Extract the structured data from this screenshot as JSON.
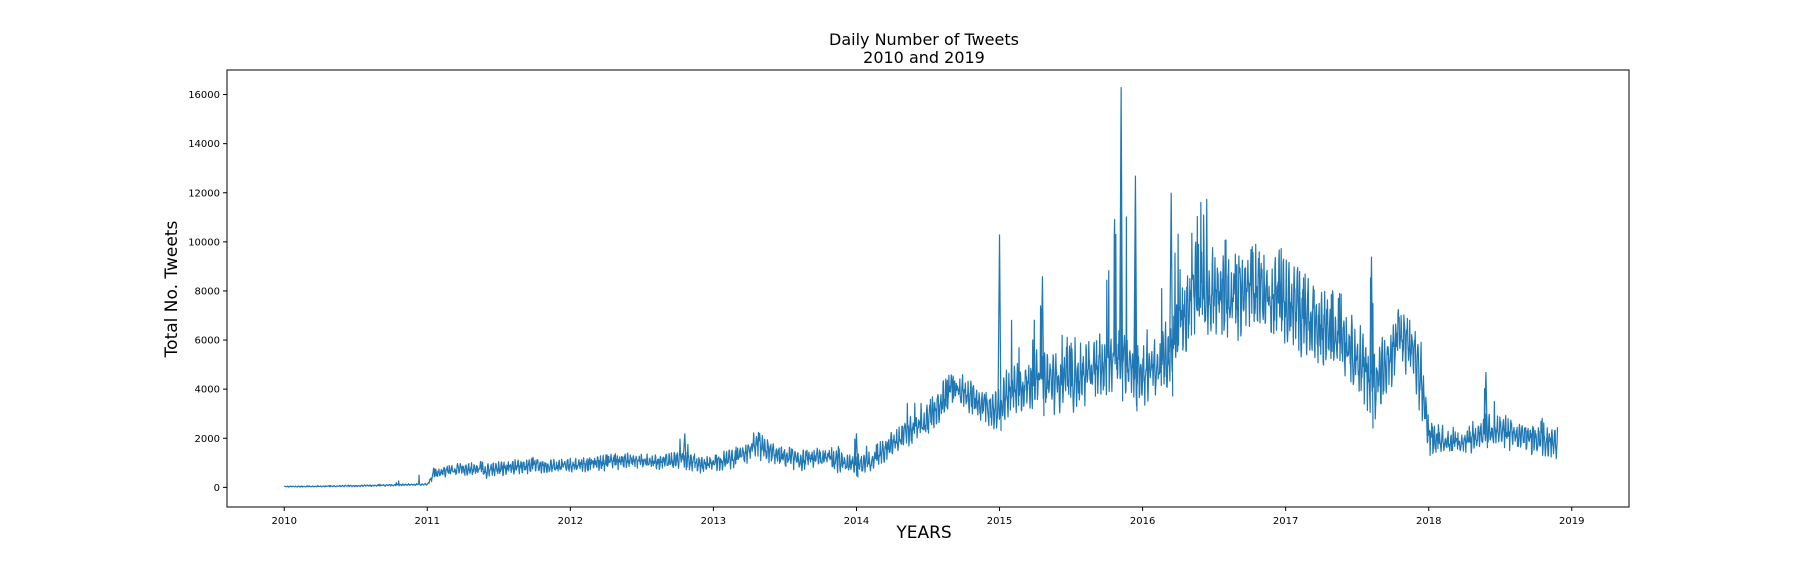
{
  "chart_data": {
    "type": "line",
    "title": "Daily Number of Tweets",
    "subtitle": "2010 and 2019",
    "xlabel": "YEARS",
    "ylabel": "Total No. Tweets",
    "xlim": [
      2009.6,
      2019.4
    ],
    "ylim": [
      -800,
      17000
    ],
    "x_ticks": [
      2010,
      2011,
      2012,
      2013,
      2014,
      2015,
      2016,
      2017,
      2018,
      2019
    ],
    "x_tick_labels": [
      "2010",
      "2011",
      "2012",
      "2013",
      "2014",
      "2015",
      "2016",
      "2017",
      "2018",
      "2019"
    ],
    "y_ticks": [
      0,
      2000,
      4000,
      6000,
      8000,
      10000,
      12000,
      14000,
      16000
    ],
    "y_tick_labels": [
      "0",
      "2000",
      "4000",
      "6000",
      "8000",
      "10000",
      "12000",
      "14000",
      "16000"
    ],
    "grid": false,
    "series_color": "#1f77b4",
    "sampling": "approximate weekly trend of a daily series; max and min mark the spike peaks and troughs",
    "series": [
      {
        "x": [
          2010.0,
          2010.25,
          2010.5,
          2010.75,
          2011.0,
          2011.05,
          2011.15,
          2011.3,
          2011.45,
          2011.6,
          2011.75,
          2011.9,
          2012.0,
          2012.2,
          2012.4,
          2012.6,
          2012.8,
          2012.9,
          2013.0,
          2013.15,
          2013.3,
          2013.45,
          2013.6,
          2013.8,
          2014.0,
          2014.1,
          2014.2,
          2014.35,
          2014.5,
          2014.65,
          2014.75,
          2014.85,
          2014.95,
          2015.0,
          2015.1,
          2015.2,
          2015.3,
          2015.45,
          2015.6,
          2015.75,
          2015.85,
          2015.95,
          2016.0,
          2016.1,
          2016.2,
          2016.3,
          2016.4,
          2016.5,
          2016.6,
          2016.7,
          2016.8,
          2016.9,
          2017.0,
          2017.1,
          2017.2,
          2017.3,
          2017.4,
          2017.5,
          2017.6,
          2017.7,
          2017.8,
          2017.9,
          2017.95,
          2018.0,
          2018.1,
          2018.2,
          2018.3,
          2018.4,
          2018.5,
          2018.6,
          2018.7,
          2018.8,
          2018.9
        ],
        "mean": [
          30,
          40,
          60,
          90,
          130,
          550,
          700,
          750,
          700,
          850,
          900,
          850,
          900,
          1000,
          1100,
          1050,
          1150,
          900,
          1000,
          1200,
          1700,
          1300,
          1100,
          1200,
          900,
          1100,
          1500,
          2200,
          2700,
          3900,
          3900,
          3500,
          3100,
          3400,
          4000,
          4200,
          4400,
          4300,
          4600,
          5000,
          5200,
          4700,
          4600,
          4800,
          5500,
          7200,
          8200,
          7800,
          7700,
          7900,
          8100,
          7700,
          7600,
          7200,
          6800,
          6400,
          6200,
          5300,
          4300,
          4800,
          6200,
          5500,
          4200,
          2000,
          1900,
          1800,
          1900,
          2400,
          2300,
          2100,
          2000,
          2000,
          1800
        ],
        "min": [
          0,
          10,
          20,
          40,
          70,
          300,
          400,
          400,
          300,
          500,
          500,
          500,
          550,
          600,
          700,
          650,
          700,
          500,
          550,
          700,
          1000,
          700,
          600,
          600,
          400,
          600,
          900,
          1500,
          1900,
          2800,
          2900,
          2500,
          2200,
          2300,
          2600,
          2800,
          2900,
          2700,
          3000,
          3400,
          3500,
          3100,
          3000,
          3200,
          3700,
          5000,
          5800,
          5700,
          5600,
          5700,
          5900,
          5600,
          5500,
          5000,
          4600,
          4200,
          4100,
          3400,
          2400,
          3000,
          4000,
          3500,
          2500,
          1200,
          1300,
          1300,
          1300,
          1600,
          1500,
          1300,
          1200,
          1100,
          1000
        ],
        "max": [
          60,
          80,
          110,
          150,
          800,
          900,
          1000,
          1100,
          1100,
          1200,
          1300,
          1200,
          1300,
          1400,
          1500,
          1400,
          2200,
          1300,
          1400,
          1700,
          2400,
          1800,
          1600,
          1700,
          2200,
          1600,
          2200,
          3800,
          3600,
          4800,
          4700,
          4400,
          4000,
          10300,
          6600,
          6200,
          8600,
          6500,
          7000,
          9300,
          16300,
          12700,
          6600,
          7000,
          12000,
          10000,
          13300,
          11000,
          10200,
          10400,
          10200,
          9500,
          10300,
          9300,
          8800,
          8900,
          8000,
          7000,
          9400,
          6200,
          8000,
          7000,
          6100,
          2800,
          2600,
          2500,
          2600,
          4700,
          3300,
          2800,
          2700,
          3100,
          2800
        ]
      }
    ]
  }
}
